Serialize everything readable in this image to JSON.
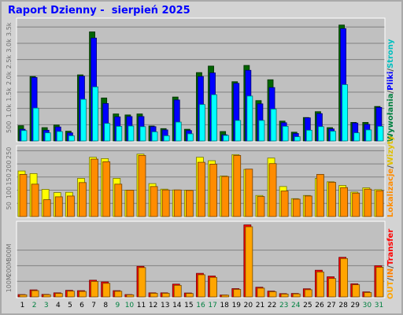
{
  "title": "Raport Dzienny -  sierpień 2025",
  "colors": {
    "hits": "#006400",
    "files": "#0000ff",
    "pages": "#00ffff",
    "visits": "#ffff00",
    "sites": "#ff8c00",
    "kbytes": "#ff0000",
    "in": "#ffa500",
    "out": "#ff8000",
    "weekend_label": "#008040",
    "label": "#000000",
    "separator": "#505050"
  },
  "right_labels": {
    "top": [
      {
        "text": "Wywołania",
        "color": "#008040"
      },
      {
        "text": "/",
        "color": "#505050"
      },
      {
        "text": "Pliki",
        "color": "#0000ff"
      },
      {
        "text": "/",
        "color": "#505050"
      },
      {
        "text": "Strony",
        "color": "#00c0c0"
      }
    ],
    "mid": [
      {
        "text": "Lokalizacje",
        "color": "#ff8c00"
      },
      {
        "text": "/",
        "color": "#505050"
      },
      {
        "text": "Wizyty",
        "color": "#e0c000"
      }
    ],
    "bot": [
      {
        "text": "OUT",
        "color": "#ffa500"
      },
      {
        "text": "/",
        "color": "#505050"
      },
      {
        "text": "IN",
        "color": "#ff8000"
      },
      {
        "text": "/",
        "color": "#505050"
      },
      {
        "text": "Transfer",
        "color": "#ff0000"
      }
    ]
  },
  "chart_data": [
    {
      "type": "bar",
      "name": "Wywołania/Pliki/Strony",
      "x": [
        1,
        2,
        3,
        4,
        5,
        6,
        7,
        8,
        9,
        10,
        11,
        12,
        13,
        14,
        15,
        16,
        17,
        18,
        19,
        20,
        21,
        22,
        23,
        24,
        25,
        26,
        27,
        28,
        29,
        30,
        31
      ],
      "weekend_days": [
        2,
        3,
        9,
        10,
        16,
        17,
        23,
        24,
        30,
        31
      ],
      "ylim": [
        0,
        3700
      ],
      "yticks": [
        "500",
        "1.0k",
        "1.5k",
        "2.0k",
        "2.5k",
        "3.0k",
        "3.5k"
      ],
      "ytick_values": [
        500,
        1000,
        1500,
        2000,
        2500,
        3000,
        3500
      ],
      "series": [
        {
          "name": "Wywołania",
          "values": [
            470,
            1980,
            410,
            490,
            300,
            2030,
            3350,
            1320,
            830,
            800,
            830,
            460,
            380,
            1350,
            360,
            2100,
            2300,
            290,
            1820,
            2320,
            1240,
            1880,
            610,
            270,
            720,
            900,
            410,
            3560,
            570,
            570,
            1060
          ]
        },
        {
          "name": "Pliki",
          "values": [
            360,
            1950,
            330,
            430,
            250,
            1990,
            3160,
            1150,
            740,
            750,
            750,
            440,
            340,
            1260,
            320,
            1980,
            2090,
            190,
            1770,
            2170,
            1140,
            1640,
            560,
            230,
            710,
            840,
            370,
            3450,
            550,
            510,
            1030
          ]
        },
        {
          "name": "Strony",
          "values": [
            320,
            1010,
            250,
            290,
            160,
            1280,
            1660,
            540,
            450,
            460,
            440,
            280,
            160,
            580,
            220,
            1120,
            1420,
            170,
            630,
            1380,
            630,
            980,
            450,
            130,
            330,
            440,
            300,
            1730,
            250,
            340,
            450
          ]
        }
      ]
    },
    {
      "type": "bar",
      "name": "Wizyty/Lokalizacje",
      "x": [
        1,
        2,
        3,
        4,
        5,
        6,
        7,
        8,
        9,
        10,
        11,
        12,
        13,
        14,
        15,
        16,
        17,
        18,
        19,
        20,
        21,
        22,
        23,
        24,
        25,
        26,
        27,
        28,
        29,
        30,
        31
      ],
      "ylim": [
        0,
        260
      ],
      "yticks": [
        "50",
        "100",
        "150",
        "200",
        "250"
      ],
      "ytick_values": [
        50,
        100,
        150,
        200,
        250
      ],
      "series": [
        {
          "name": "Wizyty",
          "values": [
            173,
            163,
            103,
            91,
            92,
            145,
            225,
            220,
            145,
            100,
            237,
            125,
            104,
            101,
            100,
            225,
            212,
            154,
            235,
            179,
            80,
            222,
            114,
            68,
            80,
            145,
            132,
            118,
            93,
            109,
            102
          ]
        },
        {
          "name": "Lokalizacje",
          "values": [
            160,
            123,
            64,
            75,
            78,
            129,
            218,
            208,
            123,
            100,
            232,
            114,
            101,
            101,
            99,
            206,
            199,
            152,
            232,
            180,
            76,
            201,
            97,
            66,
            78,
            160,
            130,
            110,
            89,
            104,
            98
          ]
        }
      ]
    },
    {
      "type": "bar",
      "name": "Transfer/IN/OUT",
      "x": [
        1,
        2,
        3,
        4,
        5,
        6,
        7,
        8,
        9,
        10,
        11,
        12,
        13,
        14,
        15,
        16,
        17,
        18,
        19,
        20,
        21,
        22,
        23,
        24,
        25,
        26,
        27,
        28,
        29,
        30,
        31
      ],
      "ylim": [
        0,
        470
      ],
      "yticks": [
        "100M",
        "200M",
        "300M"
      ],
      "ytick_values": [
        100,
        200,
        300
      ],
      "series": [
        {
          "name": "Transfer",
          "values": [
            15,
            45,
            16,
            26,
            42,
            40,
            107,
            96,
            40,
            15,
            196,
            26,
            26,
            82,
            25,
            151,
            134,
            12,
            53,
            462,
            62,
            37,
            21,
            22,
            52,
            171,
            129,
            254,
            84,
            32,
            200
          ]
        },
        {
          "name": "OUT",
          "values": [
            13,
            40,
            14,
            22,
            37,
            35,
            99,
            87,
            36,
            13,
            188,
            23,
            23,
            74,
            22,
            142,
            125,
            11,
            48,
            450,
            56,
            33,
            18,
            19,
            46,
            160,
            118,
            246,
            78,
            28,
            190
          ]
        }
      ]
    }
  ]
}
